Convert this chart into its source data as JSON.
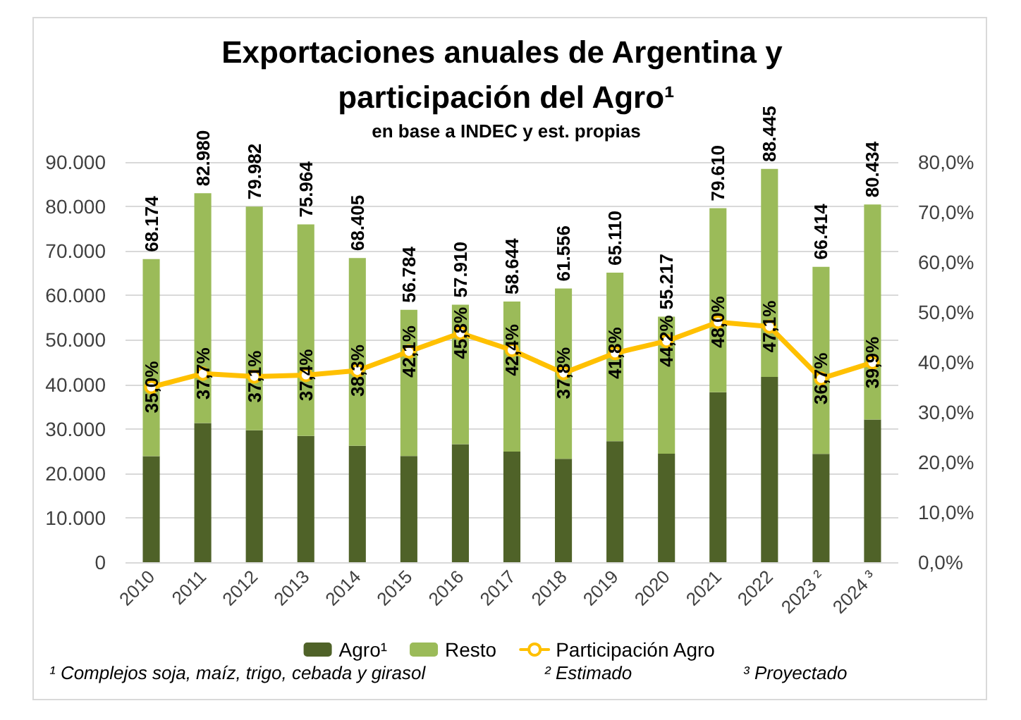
{
  "chart_data": {
    "type": "bar",
    "title": "Exportaciones anuales de Argentina y participación del Agro¹",
    "subtitle": "en base a INDEC y est. propias",
    "annotations": [
      "¹ Complejos soja, maíz, trigo, cebada y girasol",
      "² Estimado",
      "³ Proyectado"
    ],
    "categories": [
      "2010",
      "2011",
      "2012",
      "2013",
      "2014",
      "2015",
      "2016",
      "2017",
      "2018",
      "2019",
      "2020",
      "2021",
      "2022",
      "2023 ²",
      "2024 ³"
    ],
    "series": [
      {
        "name": "Agro¹",
        "color": "#4f6228",
        "values": [
          23861,
          31283,
          29673,
          28411,
          26199,
          23906,
          26523,
          24865,
          23268,
          27216,
          24406,
          38213,
          41658,
          24374,
          32093
        ]
      },
      {
        "name": "Resto",
        "color": "#9bbb59",
        "values": [
          44313,
          51697,
          50309,
          47553,
          42206,
          32878,
          31387,
          33779,
          38288,
          37894,
          30811,
          41397,
          46787,
          42040,
          48341
        ]
      },
      {
        "name": "Participación Agro",
        "type": "line",
        "axis": "y2",
        "color": "#ffc000",
        "values": [
          35.0,
          37.7,
          37.1,
          37.4,
          38.3,
          42.1,
          45.8,
          42.4,
          37.8,
          41.8,
          44.2,
          48.0,
          47.1,
          36.7,
          39.9
        ],
        "value_labels": [
          "35,0%",
          "37,7%",
          "37,1%",
          "37,4%",
          "38,3%",
          "42,1%",
          "45,8%",
          "42,4%",
          "37,8%",
          "41,8%",
          "44,2%",
          "48,0%",
          "47,1%",
          "36,7%",
          "39,9%"
        ]
      }
    ],
    "stacked": true,
    "totals": [
      "68.174",
      "82.980",
      "79.982",
      "75.964",
      "68.405",
      "56.784",
      "57.910",
      "58.644",
      "61.556",
      "65.110",
      "55.217",
      "79.610",
      "88.445",
      "66.414",
      "80.434"
    ],
    "ylim": [
      0,
      90000
    ],
    "yticks": [
      {
        "value": 0,
        "label": "0"
      },
      {
        "value": 10000,
        "label": "10.000"
      },
      {
        "value": 20000,
        "label": "20.000"
      },
      {
        "value": 30000,
        "label": "30.000"
      },
      {
        "value": 40000,
        "label": "40.000"
      },
      {
        "value": 50000,
        "label": "50.000"
      },
      {
        "value": 60000,
        "label": "60.000"
      },
      {
        "value": 70000,
        "label": "70.000"
      },
      {
        "value": 80000,
        "label": "80.000"
      },
      {
        "value": 90000,
        "label": "90.000"
      }
    ],
    "y2lim": [
      0,
      80
    ],
    "y2ticks": [
      {
        "value": 0,
        "label": "0,0%"
      },
      {
        "value": 10,
        "label": "10,0%"
      },
      {
        "value": 20,
        "label": "20,0%"
      },
      {
        "value": 30,
        "label": "30,0%"
      },
      {
        "value": 40,
        "label": "40,0%"
      },
      {
        "value": 50,
        "label": "50,0%"
      },
      {
        "value": 60,
        "label": "60,0%"
      },
      {
        "value": 70,
        "label": "70,0%"
      },
      {
        "value": 80,
        "label": "80,0%"
      }
    ],
    "grid": "y",
    "legend": "bottom",
    "marker": "circle",
    "line_style": "solid"
  }
}
